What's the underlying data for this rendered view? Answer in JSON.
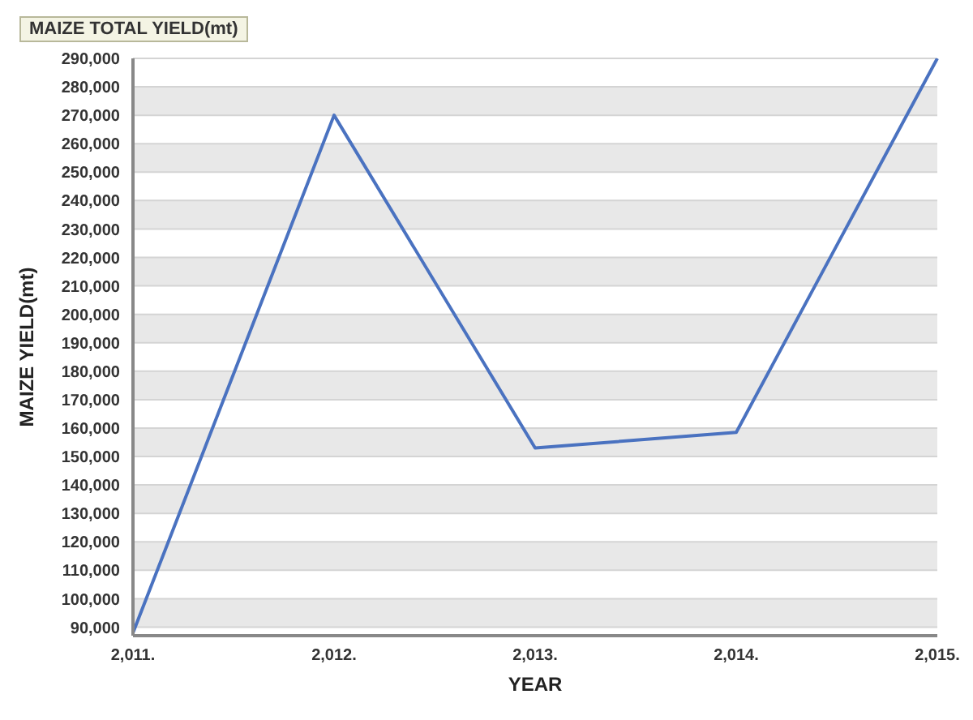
{
  "chart_data": {
    "type": "line",
    "title": "MAIZE TOTAL YIELD(mt)",
    "xlabel": "YEAR",
    "ylabel": "MAIZE YIELD(mt)",
    "categories": [
      "2,011.",
      "2,012.",
      "2,013.",
      "2,014.",
      "2,015."
    ],
    "series": [
      {
        "color": "#4a72c0",
        "values": [
          88000,
          270000,
          153000,
          158500,
          290000
        ]
      }
    ],
    "ylim": [
      87000,
      290000
    ],
    "yticks": [
      {
        "value": 90000,
        "label": "90,000"
      },
      {
        "value": 100000,
        "label": "100,000"
      },
      {
        "value": 110000,
        "label": "110,000"
      },
      {
        "value": 120000,
        "label": "120,000"
      },
      {
        "value": 130000,
        "label": "130,000"
      },
      {
        "value": 140000,
        "label": "140,000"
      },
      {
        "value": 150000,
        "label": "150,000"
      },
      {
        "value": 160000,
        "label": "160,000"
      },
      {
        "value": 170000,
        "label": "170,000"
      },
      {
        "value": 180000,
        "label": "180,000"
      },
      {
        "value": 190000,
        "label": "190,000"
      },
      {
        "value": 200000,
        "label": "200,000"
      },
      {
        "value": 210000,
        "label": "210,000"
      },
      {
        "value": 220000,
        "label": "220,000"
      },
      {
        "value": 230000,
        "label": "230,000"
      },
      {
        "value": 240000,
        "label": "240,000"
      },
      {
        "value": 250000,
        "label": "250,000"
      },
      {
        "value": 260000,
        "label": "260,000"
      },
      {
        "value": 270000,
        "label": "270,000"
      },
      {
        "value": 280000,
        "label": "280,000"
      },
      {
        "value": 290000,
        "label": "290,000"
      }
    ],
    "grid": "y",
    "legend": false,
    "marker": "none",
    "line_style": "solid"
  }
}
